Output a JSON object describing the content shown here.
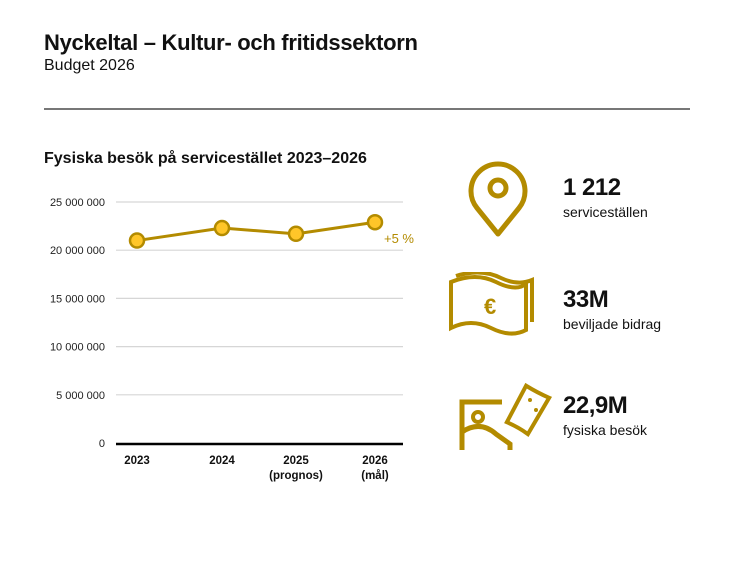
{
  "header": {
    "title": "Nyckeltal – Kultur- och fritidssektorn",
    "subtitle": "Budget 2026"
  },
  "chart_data": {
    "type": "line",
    "title": "Fysiska besök på servicestället 2023–2026",
    "categories": [
      "2023",
      "2024",
      "2025\n(prognos)",
      "2026\n(mål)"
    ],
    "category_lines": [
      [
        "2023"
      ],
      [
        "2024"
      ],
      [
        "2025",
        "(prognos)"
      ],
      [
        "2026",
        "(mål)"
      ]
    ],
    "values": [
      21000000,
      22300000,
      21700000,
      22900000
    ],
    "ylim": [
      0,
      25000000
    ],
    "yticks": [
      0,
      5000000,
      10000000,
      15000000,
      20000000,
      25000000
    ],
    "ytick_labels": [
      "0",
      "5 000 000",
      "10 000 000",
      "15 000 000",
      "20 000 000",
      "25 000 000"
    ],
    "grid": true,
    "annotation": "+5 %",
    "colors": {
      "line": "#B38B00",
      "marker": "#FFC629",
      "annotation": "#B38B00"
    }
  },
  "kpis": [
    {
      "icon": "map-pin-icon",
      "value": "1 212",
      "label": "serviceställen"
    },
    {
      "icon": "banknote-euro-icon",
      "value": "33M",
      "label": "beviljade bidrag"
    },
    {
      "icon": "ticket-image-icon",
      "value": "22,9M",
      "label": "fysiska besök"
    }
  ]
}
